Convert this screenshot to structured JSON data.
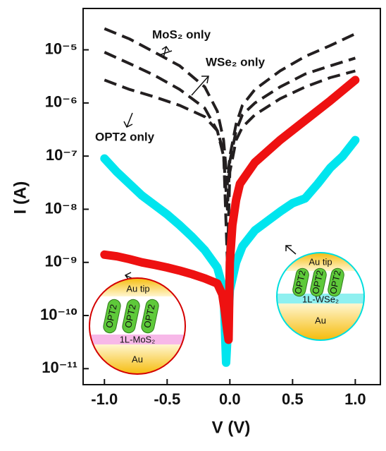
{
  "chart_data": {
    "type": "line",
    "x_label": "V (V)",
    "y_label": "I (A)",
    "log_y": true,
    "xlim": [
      -1.17,
      1.2
    ],
    "ylim": [
      5e-12,
      6e-05
    ],
    "xticks": [
      {
        "value": -1,
        "label": "-1.0"
      },
      -0.5,
      {
        "value": 0,
        "label": "0.0"
      },
      0.5,
      {
        "value": 1,
        "label": "1.0"
      }
    ],
    "yticks": [
      {
        "value": 1e-11,
        "label": "10⁻¹¹"
      },
      {
        "value": 1e-10,
        "label": "10⁻¹⁰"
      },
      {
        "value": 1e-09,
        "label": "10⁻⁹"
      },
      {
        "value": 1e-08,
        "label": "10⁻⁸"
      },
      {
        "value": 1e-07,
        "label": "10⁻⁷"
      },
      {
        "value": 1e-06,
        "label": "10⁻⁶"
      },
      {
        "value": 1e-05,
        "label": "10⁻⁵"
      }
    ],
    "series": [
      {
        "name": "MoS₂ only",
        "color": "#231f20",
        "style": "dashed",
        "x": [
          -1,
          -0.8,
          -0.6,
          -0.4,
          -0.2,
          -0.1,
          -0.05,
          -0.02,
          0,
          0.05,
          0.1,
          0.2,
          0.4,
          0.6,
          0.8,
          1
        ],
        "values": [
          2.5e-05,
          1.6e-05,
          9e-06,
          5e-06,
          2e-06,
          7e-07,
          2e-07,
          3e-08,
          1e-07,
          4e-07,
          9e-07,
          1.8e-06,
          4e-06,
          7.5e-06,
          1.2e-05,
          2e-05
        ]
      },
      {
        "name": "WSe₂ only",
        "color": "#231f20",
        "style": "dashed",
        "x": [
          -1,
          -0.8,
          -0.6,
          -0.4,
          -0.2,
          -0.1,
          -0.05,
          -0.02,
          0,
          0.05,
          0.1,
          0.2,
          0.4,
          0.6,
          0.8,
          1
        ],
        "values": [
          9e-06,
          5.5e-06,
          3.3e-06,
          1.8e-06,
          8e-07,
          3e-07,
          1e-07,
          1e-08,
          8e-08,
          3e-07,
          6e-07,
          1e-06,
          2e-06,
          3.5e-06,
          5e-06,
          7e-06
        ]
      },
      {
        "name": "OPT2 only",
        "color": "#231f20",
        "style": "dashed",
        "x": [
          -1,
          -0.8,
          -0.6,
          -0.4,
          -0.2,
          -0.1,
          -0.05,
          -0.02,
          0,
          0.05,
          0.1,
          0.2,
          0.4,
          0.6,
          0.8,
          1
        ],
        "values": [
          2.7e-06,
          1.8e-06,
          1.3e-06,
          9e-07,
          5.5e-07,
          3e-07,
          1.2e-07,
          1e-09,
          5e-08,
          2e-07,
          3.5e-07,
          6e-07,
          1.2e-06,
          2e-06,
          3e-06,
          4e-06
        ]
      },
      {
        "color": "#00e5ee",
        "style": "markers",
        "x": [
          -1,
          -0.9,
          -0.8,
          -0.7,
          -0.6,
          -0.5,
          -0.4,
          -0.3,
          -0.2,
          -0.1,
          -0.05,
          -0.03,
          0,
          0.05,
          0.1,
          0.2,
          0.3,
          0.4,
          0.5,
          0.6,
          0.7,
          0.8,
          0.9,
          1
        ],
        "values": [
          9e-08,
          5e-08,
          3e-08,
          1.8e-08,
          1.2e-08,
          8e-09,
          5e-09,
          3e-09,
          1.7e-09,
          8e-10,
          3e-10,
          1.3e-11,
          3e-10,
          1e-09,
          2e-09,
          4e-09,
          6e-09,
          9e-09,
          1.3e-08,
          1.6e-08,
          3e-08,
          6e-08,
          1e-07,
          2e-07
        ]
      },
      {
        "color": "#ee1111",
        "style": "markers",
        "x": [
          -1,
          -0.9,
          -0.8,
          -0.7,
          -0.6,
          -0.5,
          -0.4,
          -0.3,
          -0.2,
          -0.1,
          -0.06,
          -0.04,
          -0.02,
          -0.01,
          0,
          0.02,
          0.05,
          0.08,
          0.2,
          0.4,
          0.6,
          0.8,
          1
        ],
        "values": [
          1.4e-09,
          1.3e-09,
          1.15e-09,
          1e-09,
          9e-10,
          8e-10,
          7e-10,
          6e-10,
          5e-10,
          4e-10,
          2.5e-10,
          1.2e-10,
          5e-11,
          3.5e-11,
          1e-09,
          5e-09,
          1.5e-08,
          3e-08,
          7.6e-08,
          2e-07,
          4.7e-07,
          1.1e-06,
          2.7e-06
        ]
      }
    ],
    "insets": [
      {
        "tip": "Au tip",
        "molecules": [
          "OPT2",
          "OPT2",
          "OPT2"
        ],
        "layer": "1L-MoS₂",
        "substrate": "Au"
      },
      {
        "tip": "Au tip",
        "molecules": [
          "OPT2",
          "OPT2",
          "OPT2"
        ],
        "layer": "1L-WSe₂",
        "substrate": "Au"
      }
    ]
  }
}
